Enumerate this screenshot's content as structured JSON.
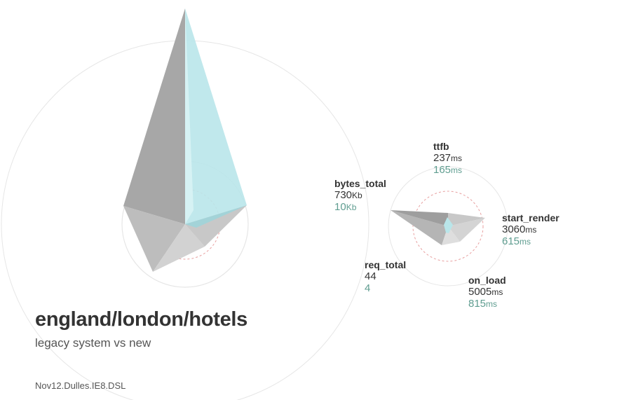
{
  "title": "england/london/hotels",
  "subtitle": "legacy system vs new",
  "footnote": "Nov12.Dulles.IE8.DSL",
  "colors": {
    "legacy_fill": "#a9a9a9",
    "new_fill": "#b9e6ea",
    "new_text": "#5f9d90",
    "text": "#333333",
    "reference_ring": "#e8a0a0",
    "outer_ring": "#e6e6e6"
  },
  "chart_data": [
    {
      "type": "radar",
      "axes": [
        "ttfb",
        "start_render",
        "on_load",
        "req_total",
        "bytes_total"
      ],
      "series": [
        {
          "name": "legacy system",
          "values": [
            237,
            3060,
            5005,
            44,
            730
          ]
        },
        {
          "name": "new",
          "values": [
            165,
            615,
            815,
            4,
            10
          ]
        }
      ],
      "variant": "large"
    },
    {
      "type": "radar",
      "axes": [
        "ttfb",
        "start_render",
        "on_load",
        "req_total",
        "bytes_total"
      ],
      "metrics": [
        {
          "name": "ttfb",
          "legacy": "237",
          "legacy_unit": "ms",
          "new": "165",
          "new_unit": "ms"
        },
        {
          "name": "start_render",
          "legacy": "3060",
          "legacy_unit": "ms",
          "new": "615",
          "new_unit": "ms"
        },
        {
          "name": "on_load",
          "legacy": "5005",
          "legacy_unit": "ms",
          "new": "815",
          "new_unit": "ms"
        },
        {
          "name": "req_total",
          "legacy": "44",
          "legacy_unit": "",
          "new": "4",
          "new_unit": ""
        },
        {
          "name": "bytes_total",
          "legacy": "730",
          "legacy_unit": "Kb",
          "new": "10",
          "new_unit": "Kb"
        }
      ],
      "variant": "small"
    }
  ]
}
